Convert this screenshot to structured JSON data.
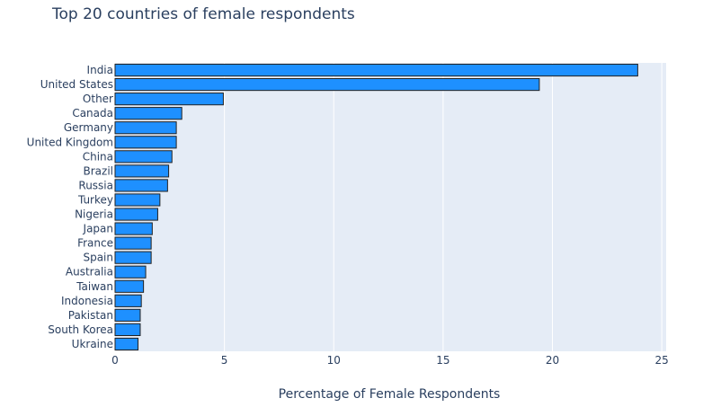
{
  "chart_data": {
    "type": "bar",
    "orientation": "horizontal",
    "title": "Top 20 countries of female respondents",
    "xlabel": "Percentage of Female Respondents",
    "ylabel": "",
    "xlim": [
      0,
      25.2
    ],
    "x_ticks": [
      0,
      5,
      10,
      15,
      20,
      25
    ],
    "grid": true,
    "categories": [
      "India",
      "United States",
      "Other",
      "Canada",
      "Germany",
      "United Kingdom",
      "China",
      "Brazil",
      "Russia",
      "Turkey",
      "Nigeria",
      "Japan",
      "France",
      "Spain",
      "Australia",
      "Taiwan",
      "Indonesia",
      "Pakistan",
      "South Korea",
      "Ukraine"
    ],
    "values": [
      23.9,
      19.4,
      4.95,
      3.05,
      2.8,
      2.8,
      2.6,
      2.45,
      2.4,
      2.05,
      1.95,
      1.7,
      1.65,
      1.65,
      1.4,
      1.3,
      1.2,
      1.15,
      1.15,
      1.05
    ],
    "colors": {
      "bar_fill": "#1e90ff",
      "bar_stroke": "#222222",
      "plot_bg": "#e5ecf6",
      "grid": "#ffffff",
      "text": "#2a3f5f",
      "tick_text": "#2a3f5f"
    }
  }
}
